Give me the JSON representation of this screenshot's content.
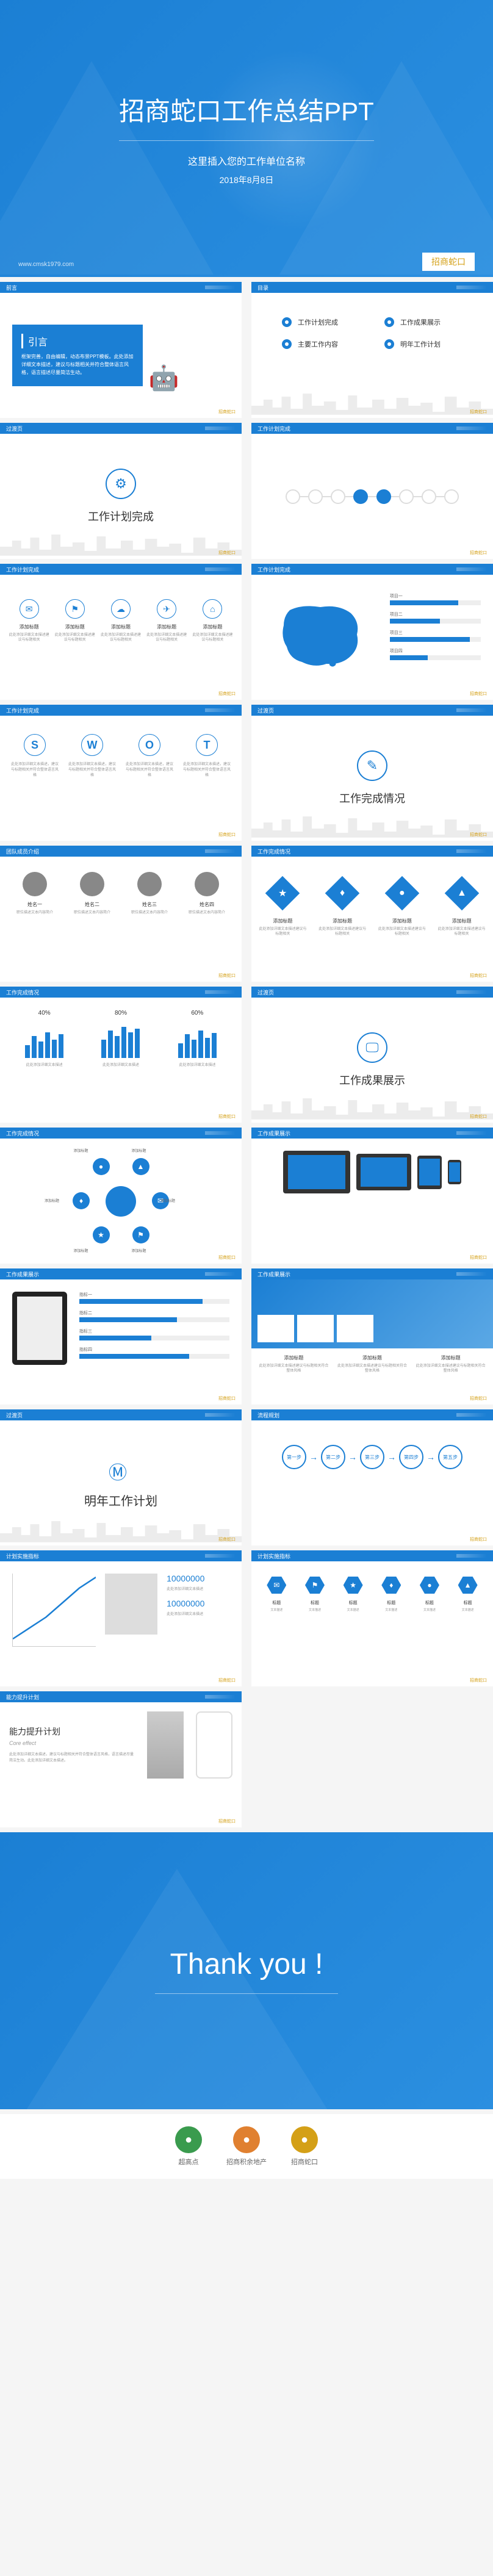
{
  "colors": {
    "primary": "#1b7fd4",
    "accent": "#d4a017",
    "text": "#333333",
    "muted": "#999999",
    "bg": "#ffffff"
  },
  "cover": {
    "title": "招商蛇口工作总结PPT",
    "subtitle": "这里插入您的工作单位名称",
    "date": "2018年8月8日",
    "url": "www.cmsk1979.com",
    "logo": "招商蛇口"
  },
  "footer_logo": "招商蛇口",
  "intro": {
    "header": "前言",
    "label": "引言",
    "text": "框架完善，自由编辑，动态布景PPT模板。此处添加详细文本描述，建议与标题相关并符合整体语言风格，语言描述尽量简洁生动。"
  },
  "toc": {
    "header": "目录",
    "items": [
      "工作计划完成",
      "工作成果展示",
      "主要工作内容",
      "明年工作计划"
    ]
  },
  "transition_header": "过渡页",
  "sections": [
    {
      "icon": "⚙",
      "title": "工作计划完成"
    },
    {
      "icon": "✎",
      "title": "工作完成情况"
    },
    {
      "icon": "🖵",
      "title": "工作成果展示"
    }
  ],
  "timeline": {
    "header": "工作计划完成",
    "count": 8,
    "active_indices": [
      3,
      4
    ]
  },
  "icon_cols": {
    "header": "工作计划完成",
    "items": [
      {
        "icon": "✉",
        "title": "添加标题",
        "desc": "此处添加详细文本描述建议与标题相关"
      },
      {
        "icon": "⚑",
        "title": "添加标题",
        "desc": "此处添加详细文本描述建议与标题相关"
      },
      {
        "icon": "☁",
        "title": "添加标题",
        "desc": "此处添加详细文本描述建议与标题相关"
      },
      {
        "icon": "✈",
        "title": "添加标题",
        "desc": "此处添加详细文本描述建议与标题相关"
      },
      {
        "icon": "⌂",
        "title": "添加标题",
        "desc": "此处添加详细文本描述建议与标题相关"
      }
    ]
  },
  "map": {
    "header": "工作计划完成",
    "region_label": "华东地区",
    "bars": [
      {
        "label": "项目一",
        "value": 75
      },
      {
        "label": "项目二",
        "value": 55
      },
      {
        "label": "项目三",
        "value": 88
      },
      {
        "label": "项目四",
        "value": 42
      }
    ]
  },
  "swot": {
    "header": "工作计划完成",
    "items": [
      {
        "letter": "S",
        "text": "此处添加详细文本描述，建议与标题相关并符合整体语言风格"
      },
      {
        "letter": "W",
        "text": "此处添加详细文本描述，建议与标题相关并符合整体语言风格"
      },
      {
        "letter": "O",
        "text": "此处添加详细文本描述，建议与标题相关并符合整体语言风格"
      },
      {
        "letter": "T",
        "text": "此处添加详细文本描述，建议与标题相关并符合整体语言风格"
      }
    ]
  },
  "team": {
    "header": "团队成员介绍",
    "members": [
      {
        "name": "姓名一",
        "role": "职位描述文本内容简介"
      },
      {
        "name": "姓名二",
        "role": "职位描述文本内容简介"
      },
      {
        "name": "姓名三",
        "role": "职位描述文本内容简介"
      },
      {
        "name": "姓名四",
        "role": "职位描述文本内容简介"
      }
    ]
  },
  "diamonds": {
    "header": "工作完成情况",
    "items": [
      {
        "icon": "★",
        "title": "添加标题",
        "desc": "此处添加详细文本描述建议与标题相关"
      },
      {
        "icon": "♦",
        "title": "添加标题",
        "desc": "此处添加详细文本描述建议与标题相关"
      },
      {
        "icon": "●",
        "title": "添加标题",
        "desc": "此处添加详细文本描述建议与标题相关"
      },
      {
        "icon": "▲",
        "title": "添加标题",
        "desc": "此处添加详细文本描述建议与标题相关"
      }
    ]
  },
  "barcharts": {
    "header": "工作完成情况",
    "groups": [
      {
        "pct": "40%",
        "bars": [
          35,
          60,
          45,
          70,
          50,
          65
        ],
        "desc": "此处添加详细文本描述"
      },
      {
        "pct": "80%",
        "bars": [
          50,
          75,
          60,
          85,
          70,
          80
        ],
        "desc": "此处添加详细文本描述"
      },
      {
        "pct": "60%",
        "bars": [
          40,
          65,
          50,
          75,
          55,
          68
        ],
        "desc": "此处添加详细文本描述"
      }
    ]
  },
  "circle": {
    "header": "工作完成情况",
    "nodes": [
      {
        "icon": "✉",
        "angle": 0,
        "label": "添加标题"
      },
      {
        "icon": "⚑",
        "angle": 60,
        "label": "添加标题"
      },
      {
        "icon": "★",
        "angle": 120,
        "label": "添加标题"
      },
      {
        "icon": "♦",
        "angle": 180,
        "label": "添加标题"
      },
      {
        "icon": "●",
        "angle": 240,
        "label": "添加标题"
      },
      {
        "icon": "▲",
        "angle": 300,
        "label": "添加标题"
      }
    ]
  },
  "devices": {
    "header": "工作成果展示"
  },
  "tablet": {
    "header": "工作成果展示",
    "bars": [
      {
        "label": "指标一",
        "value": 82
      },
      {
        "label": "指标二",
        "value": 65
      },
      {
        "label": "指标三",
        "value": 48
      },
      {
        "label": "指标四",
        "value": 73
      }
    ]
  },
  "banner": {
    "header": "工作成果展示",
    "cols": [
      {
        "title": "添加标题",
        "desc": "此处添加详细文本描述建议与标题相关符合整体风格"
      },
      {
        "title": "添加标题",
        "desc": "此处添加详细文本描述建议与标题相关符合整体风格"
      },
      {
        "title": "添加标题",
        "desc": "此处添加详细文本描述建议与标题相关符合整体风格"
      }
    ]
  },
  "plan": {
    "icon": "Ⓜ",
    "title": "明年工作计划"
  },
  "process": {
    "header": "流程规划",
    "steps": [
      "第一步",
      "第二步",
      "第三步",
      "第四步",
      "第五步"
    ]
  },
  "growth": {
    "header": "计划实施指标",
    "line_points": [
      [
        0,
        90
      ],
      [
        20,
        75
      ],
      [
        40,
        60
      ],
      [
        60,
        40
      ],
      [
        80,
        20
      ],
      [
        100,
        5
      ]
    ],
    "numbers": [
      {
        "value": "10000000",
        "desc": "此处添加详细文本描述"
      },
      {
        "value": "10000000",
        "desc": "此处添加详细文本描述"
      }
    ]
  },
  "hex": {
    "header": "计划实施指标",
    "items": [
      {
        "icon": "✉",
        "title": "标题",
        "desc": "文本描述"
      },
      {
        "icon": "⚑",
        "title": "标题",
        "desc": "文本描述"
      },
      {
        "icon": "★",
        "title": "标题",
        "desc": "文本描述"
      },
      {
        "icon": "♦",
        "title": "标题",
        "desc": "文本描述"
      },
      {
        "icon": "●",
        "title": "标题",
        "desc": "文本描述"
      },
      {
        "icon": "▲",
        "title": "标题",
        "desc": "文本描述"
      }
    ]
  },
  "core": {
    "header": "能力提升计划",
    "title": "能力提升计划",
    "subtitle": "Core effect",
    "desc": "此处添加详细文本描述，建议与标题相关并符合整体语言风格，语言描述尽量简洁生动。此处添加详细文本描述。"
  },
  "thanks": {
    "text": "Thank you !"
  },
  "logos": [
    {
      "label": "超高点",
      "color": "#3a9b4e"
    },
    {
      "label": "招商积余地产",
      "color": "#e08030"
    },
    {
      "label": "招商蛇口",
      "color": "#d4a017"
    }
  ]
}
